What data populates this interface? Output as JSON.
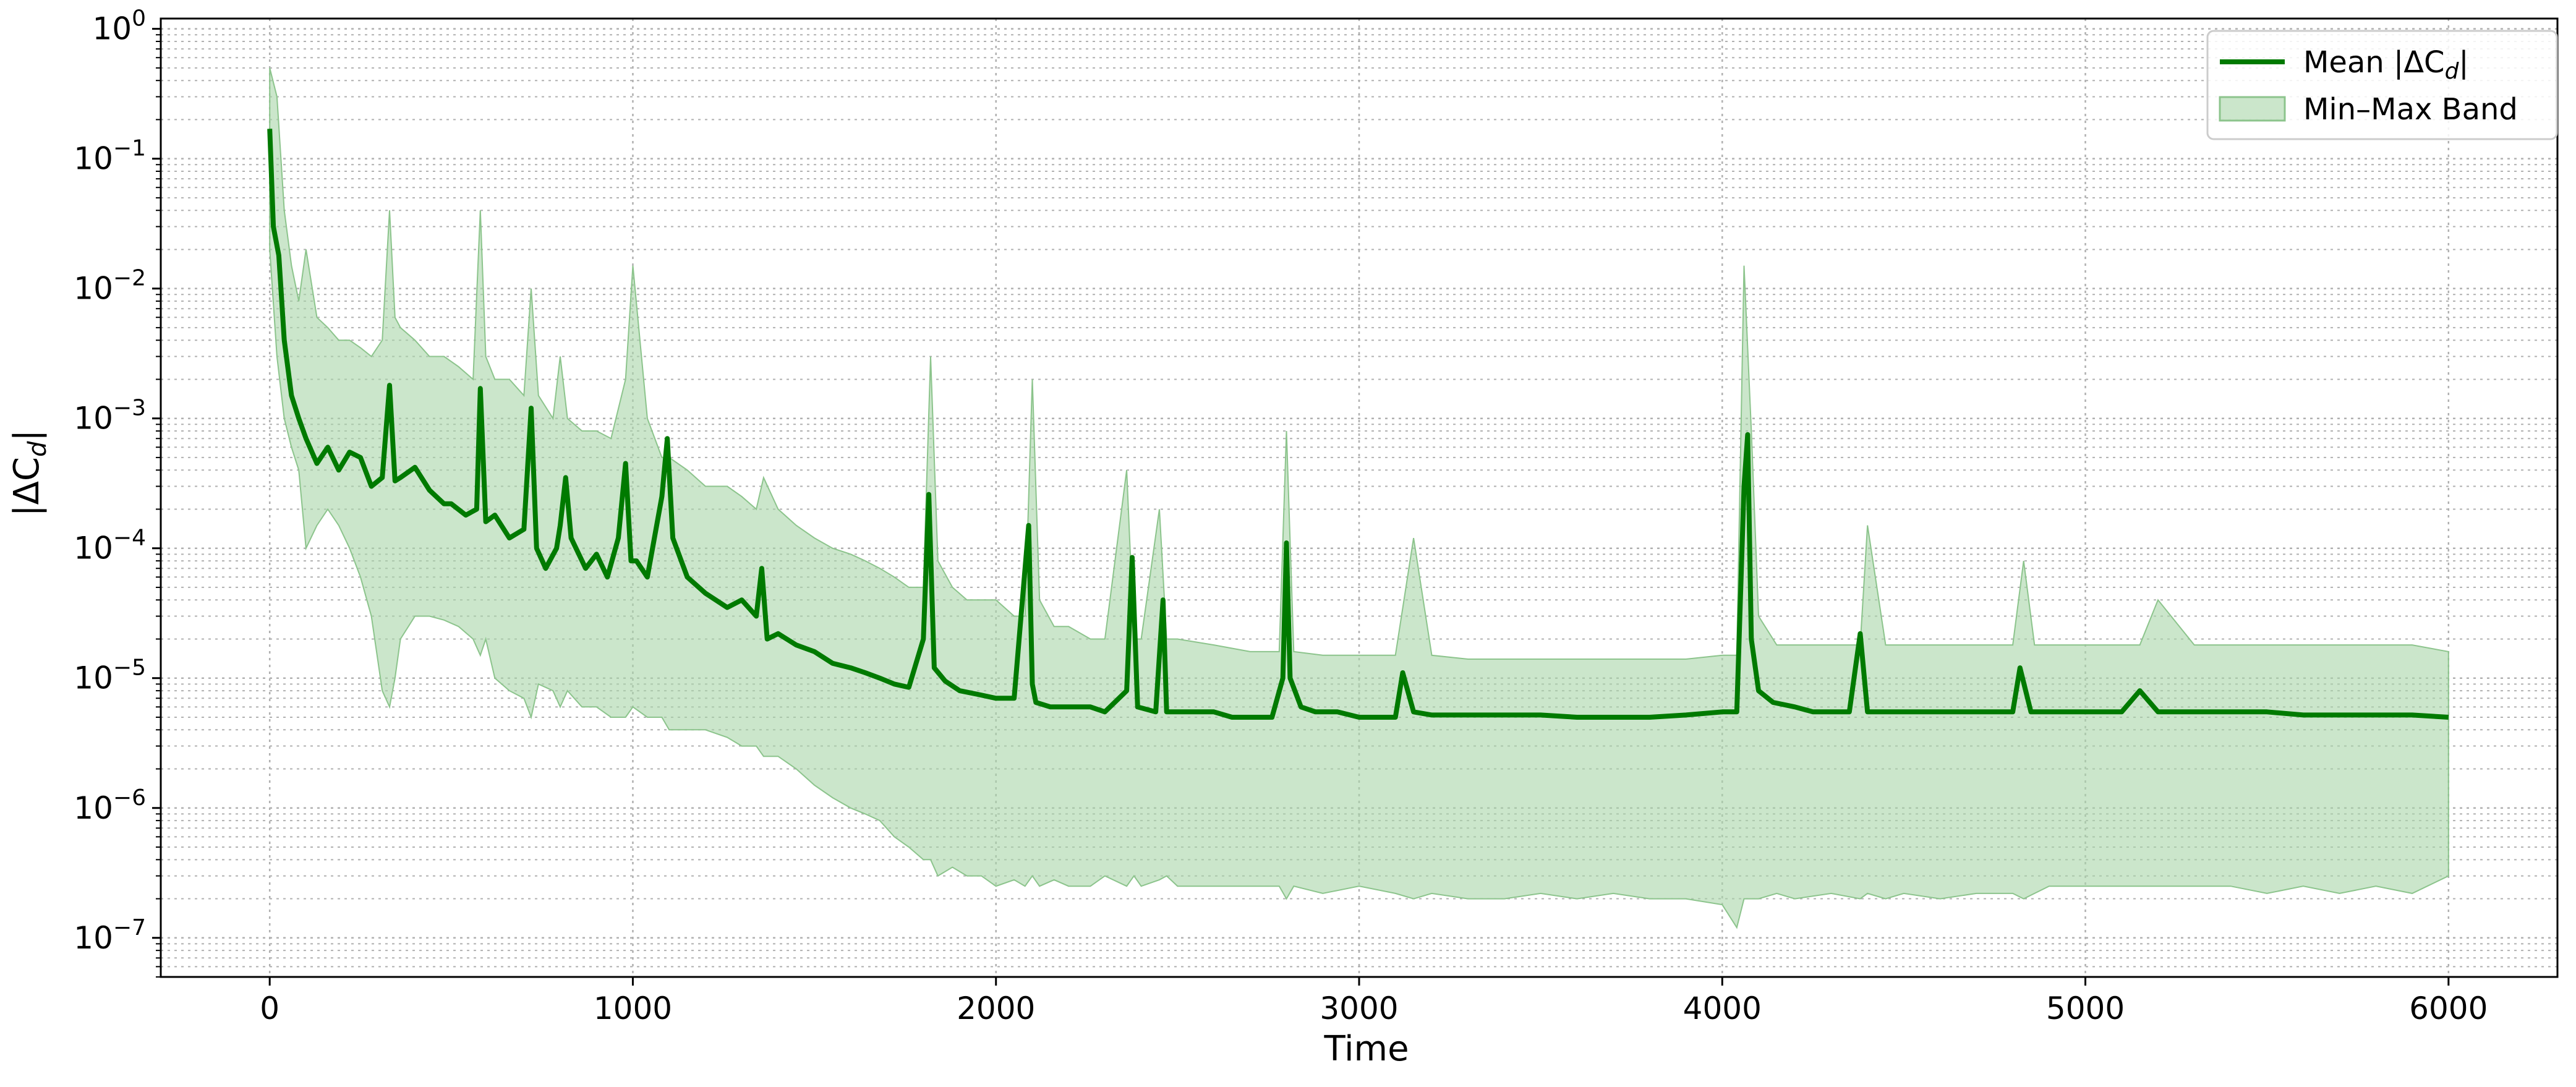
{
  "chart_data": {
    "type": "line",
    "xlabel": "Time",
    "ylabel": "|ΔC",
    "ylabel_sub": "d",
    "ylabel_end": "|",
    "x_ticks": [
      0,
      1000,
      2000,
      3000,
      4000,
      5000,
      6000
    ],
    "y_ticks": [
      {
        "exp": "0",
        "value": 1
      },
      {
        "exp": "−1",
        "value": 0.1
      },
      {
        "exp": "−2",
        "value": 0.01
      },
      {
        "exp": "−3",
        "value": 0.001
      },
      {
        "exp": "−4",
        "value": 0.0001
      },
      {
        "exp": "−5",
        "value": 1e-05
      },
      {
        "exp": "−6",
        "value": 1e-06
      },
      {
        "exp": "−7",
        "value": 1e-07
      }
    ],
    "y_tick_base": "10",
    "xlim": [
      -300,
      6300
    ],
    "ylim": [
      5e-08,
      1.2
    ],
    "yscale": "log",
    "grid": true,
    "legend_position": "top-right",
    "legend": {
      "mean_label_prefix": "Mean |ΔC",
      "mean_label_sub": "d",
      "mean_label_suffix": "|",
      "band_label": "Min–Max Band"
    },
    "colors": {
      "mean_line": "#007a00",
      "band_fill": "#a8d5a8",
      "band_edge": "#8cc48c",
      "grid": "#b0b0b0"
    },
    "series": [
      {
        "name": "Mean |ΔCd|",
        "x": [
          0,
          10,
          25,
          40,
          60,
          80,
          100,
          130,
          160,
          190,
          220,
          250,
          280,
          310,
          330,
          345,
          360,
          400,
          440,
          480,
          500,
          540,
          570,
          580,
          595,
          620,
          660,
          700,
          720,
          735,
          760,
          790,
          800,
          815,
          830,
          870,
          900,
          930,
          960,
          980,
          995,
          1010,
          1040,
          1080,
          1095,
          1110,
          1150,
          1200,
          1260,
          1300,
          1340,
          1355,
          1370,
          1400,
          1450,
          1500,
          1550,
          1600,
          1640,
          1680,
          1720,
          1760,
          1800,
          1815,
          1830,
          1860,
          1900,
          1950,
          2000,
          2050,
          2090,
          2100,
          2110,
          2150,
          2200,
          2260,
          2300,
          2360,
          2375,
          2390,
          2440,
          2460,
          2470,
          2500,
          2550,
          2600,
          2650,
          2700,
          2760,
          2790,
          2800,
          2810,
          2840,
          2880,
          2940,
          3000,
          3050,
          3100,
          3120,
          3150,
          3200,
          3300,
          3400,
          3500,
          3600,
          3700,
          3800,
          3900,
          4000,
          4040,
          4060,
          4070,
          4080,
          4100,
          4140,
          4200,
          4250,
          4300,
          4350,
          4380,
          4400,
          4450,
          4500,
          4600,
          4700,
          4800,
          4820,
          4850,
          4900,
          5000,
          5100,
          5150,
          5200,
          5300,
          5400,
          5500,
          5600,
          5700,
          5800,
          5900,
          6000
        ],
        "values": [
          0.17,
          0.03,
          0.018,
          0.004,
          0.0015,
          0.001,
          0.0007,
          0.00045,
          0.0006,
          0.0004,
          0.00055,
          0.0005,
          0.0003,
          0.00035,
          0.0018,
          0.00033,
          0.00035,
          0.00042,
          0.00028,
          0.00022,
          0.00022,
          0.00018,
          0.0002,
          0.0017,
          0.00016,
          0.00018,
          0.00012,
          0.00014,
          0.0012,
          0.0001,
          7e-05,
          0.0001,
          0.00015,
          0.00035,
          0.00012,
          7e-05,
          9e-05,
          6e-05,
          0.00012,
          0.00045,
          8e-05,
          8e-05,
          6e-05,
          0.00025,
          0.0007,
          0.00012,
          6e-05,
          4.5e-05,
          3.5e-05,
          4e-05,
          3e-05,
          7e-05,
          2e-05,
          2.2e-05,
          1.8e-05,
          1.6e-05,
          1.3e-05,
          1.2e-05,
          1.1e-05,
          1e-05,
          9e-06,
          8.5e-06,
          2e-05,
          0.00026,
          1.2e-05,
          9.5e-06,
          8e-06,
          7.5e-06,
          7e-06,
          7e-06,
          0.00015,
          9e-06,
          6.5e-06,
          6e-06,
          6e-06,
          6e-06,
          5.5e-06,
          8e-06,
          8.5e-05,
          6e-06,
          5.5e-06,
          4e-05,
          5.5e-06,
          5.5e-06,
          5.5e-06,
          5.5e-06,
          5e-06,
          5e-06,
          5e-06,
          1e-05,
          0.00011,
          1e-05,
          6e-06,
          5.5e-06,
          5.5e-06,
          5e-06,
          5e-06,
          5e-06,
          1.1e-05,
          5.5e-06,
          5.2e-06,
          5.2e-06,
          5.2e-06,
          5.2e-06,
          5e-06,
          5e-06,
          5e-06,
          5.2e-06,
          5.5e-06,
          5.5e-06,
          0.0003,
          0.00075,
          2e-05,
          8e-06,
          6.5e-06,
          6e-06,
          5.5e-06,
          5.5e-06,
          5.5e-06,
          2.2e-05,
          5.5e-06,
          5.5e-06,
          5.5e-06,
          5.5e-06,
          5.5e-06,
          5.5e-06,
          1.2e-05,
          5.5e-06,
          5.5e-06,
          5.5e-06,
          5.5e-06,
          8e-06,
          5.5e-06,
          5.5e-06,
          5.5e-06,
          5.5e-06,
          5.2e-06,
          5.2e-06,
          5.2e-06,
          5.2e-06,
          5e-06
        ]
      },
      {
        "name": "Min–Max Band",
        "x": [
          0,
          20,
          40,
          60,
          80,
          100,
          130,
          160,
          190,
          220,
          250,
          280,
          310,
          330,
          345,
          360,
          400,
          440,
          480,
          520,
          560,
          580,
          595,
          620,
          660,
          700,
          720,
          740,
          780,
          800,
          820,
          860,
          900,
          940,
          980,
          1000,
          1040,
          1080,
          1100,
          1150,
          1200,
          1260,
          1300,
          1340,
          1360,
          1400,
          1450,
          1500,
          1550,
          1600,
          1640,
          1680,
          1720,
          1760,
          1800,
          1820,
          1840,
          1880,
          1920,
          1960,
          2000,
          2050,
          2080,
          2100,
          2120,
          2160,
          2200,
          2260,
          2300,
          2360,
          2380,
          2400,
          2450,
          2470,
          2500,
          2600,
          2700,
          2780,
          2800,
          2820,
          2900,
          3000,
          3100,
          3150,
          3200,
          3300,
          3400,
          3500,
          3600,
          3700,
          3800,
          3900,
          4000,
          4040,
          4060,
          4080,
          4100,
          4150,
          4200,
          4300,
          4380,
          4400,
          4450,
          4500,
          4600,
          4700,
          4800,
          4830,
          4860,
          4900,
          5000,
          5100,
          5150,
          5200,
          5300,
          5400,
          5500,
          5600,
          5700,
          5800,
          5900,
          6000
        ],
        "upper": [
          0.5,
          0.3,
          0.04,
          0.015,
          0.008,
          0.02,
          0.006,
          0.005,
          0.004,
          0.004,
          0.0035,
          0.003,
          0.004,
          0.04,
          0.006,
          0.005,
          0.004,
          0.003,
          0.003,
          0.0025,
          0.002,
          0.04,
          0.003,
          0.002,
          0.002,
          0.0015,
          0.01,
          0.0015,
          0.001,
          0.003,
          0.001,
          0.0008,
          0.0008,
          0.0007,
          0.002,
          0.015,
          0.001,
          0.0005,
          0.0005,
          0.0004,
          0.0003,
          0.0003,
          0.00025,
          0.0002,
          0.00035,
          0.0002,
          0.00015,
          0.00012,
          0.0001,
          9e-05,
          8e-05,
          7e-05,
          6e-05,
          5e-05,
          5e-05,
          0.003,
          8e-05,
          5e-05,
          4e-05,
          4e-05,
          4e-05,
          3e-05,
          3e-05,
          0.002,
          4e-05,
          2.5e-05,
          2.5e-05,
          2e-05,
          2e-05,
          0.0004,
          2e-05,
          2e-05,
          0.0002,
          2e-05,
          2e-05,
          1.8e-05,
          1.6e-05,
          1.6e-05,
          0.0008,
          1.6e-05,
          1.5e-05,
          1.5e-05,
          1.5e-05,
          0.00012,
          1.5e-05,
          1.4e-05,
          1.4e-05,
          1.4e-05,
          1.4e-05,
          1.4e-05,
          1.4e-05,
          1.4e-05,
          1.5e-05,
          1.5e-05,
          0.015,
          0.0008,
          3e-05,
          1.8e-05,
          1.8e-05,
          1.8e-05,
          1.8e-05,
          0.00015,
          1.8e-05,
          1.8e-05,
          1.8e-05,
          1.8e-05,
          1.8e-05,
          8e-05,
          1.8e-05,
          1.8e-05,
          1.8e-05,
          1.8e-05,
          1.8e-05,
          4e-05,
          1.8e-05,
          1.8e-05,
          1.8e-05,
          1.8e-05,
          1.8e-05,
          1.8e-05,
          1.8e-05,
          1.6e-05
        ],
        "lower": [
          0.02,
          0.003,
          0.001,
          0.0006,
          0.0004,
          0.0001,
          0.00015,
          0.0002,
          0.00015,
          0.0001,
          6e-05,
          3e-05,
          8e-06,
          6e-06,
          1e-05,
          2e-05,
          3e-05,
          3e-05,
          2.8e-05,
          2.5e-05,
          2e-05,
          1.5e-05,
          2e-05,
          1e-05,
          8e-06,
          7e-06,
          5e-06,
          9e-06,
          8e-06,
          6e-06,
          8e-06,
          6e-06,
          6e-06,
          5e-06,
          5e-06,
          6e-06,
          5e-06,
          5e-06,
          4e-06,
          4e-06,
          4e-06,
          3.5e-06,
          3e-06,
          3e-06,
          2.5e-06,
          2.5e-06,
          2e-06,
          1.5e-06,
          1.2e-06,
          1e-06,
          9e-07,
          8e-07,
          6e-07,
          5e-07,
          4e-07,
          4e-07,
          3e-07,
          3.5e-07,
          3e-07,
          3e-07,
          2.5e-07,
          2.8e-07,
          2.5e-07,
          3e-07,
          2.5e-07,
          2.8e-07,
          2.5e-07,
          2.5e-07,
          3e-07,
          2.5e-07,
          3e-07,
          2.5e-07,
          2.8e-07,
          3e-07,
          2.5e-07,
          2.5e-07,
          2.5e-07,
          2.5e-07,
          2e-07,
          2.5e-07,
          2.2e-07,
          2.5e-07,
          2.2e-07,
          2e-07,
          2.2e-07,
          2e-07,
          2e-07,
          2.2e-07,
          2e-07,
          2.2e-07,
          2e-07,
          2e-07,
          1.8e-07,
          1.2e-07,
          2e-07,
          2e-07,
          2e-07,
          2.2e-07,
          2e-07,
          2.2e-07,
          2e-07,
          2.2e-07,
          2e-07,
          2.2e-07,
          2e-07,
          2.2e-07,
          2.2e-07,
          2e-07,
          2.2e-07,
          2.5e-07,
          2.5e-07,
          2.5e-07,
          2.5e-07,
          2.5e-07,
          2.5e-07,
          2.5e-07,
          2.2e-07,
          2.5e-07,
          2.2e-07,
          2.5e-07,
          2.2e-07,
          3e-07
        ]
      }
    ]
  }
}
